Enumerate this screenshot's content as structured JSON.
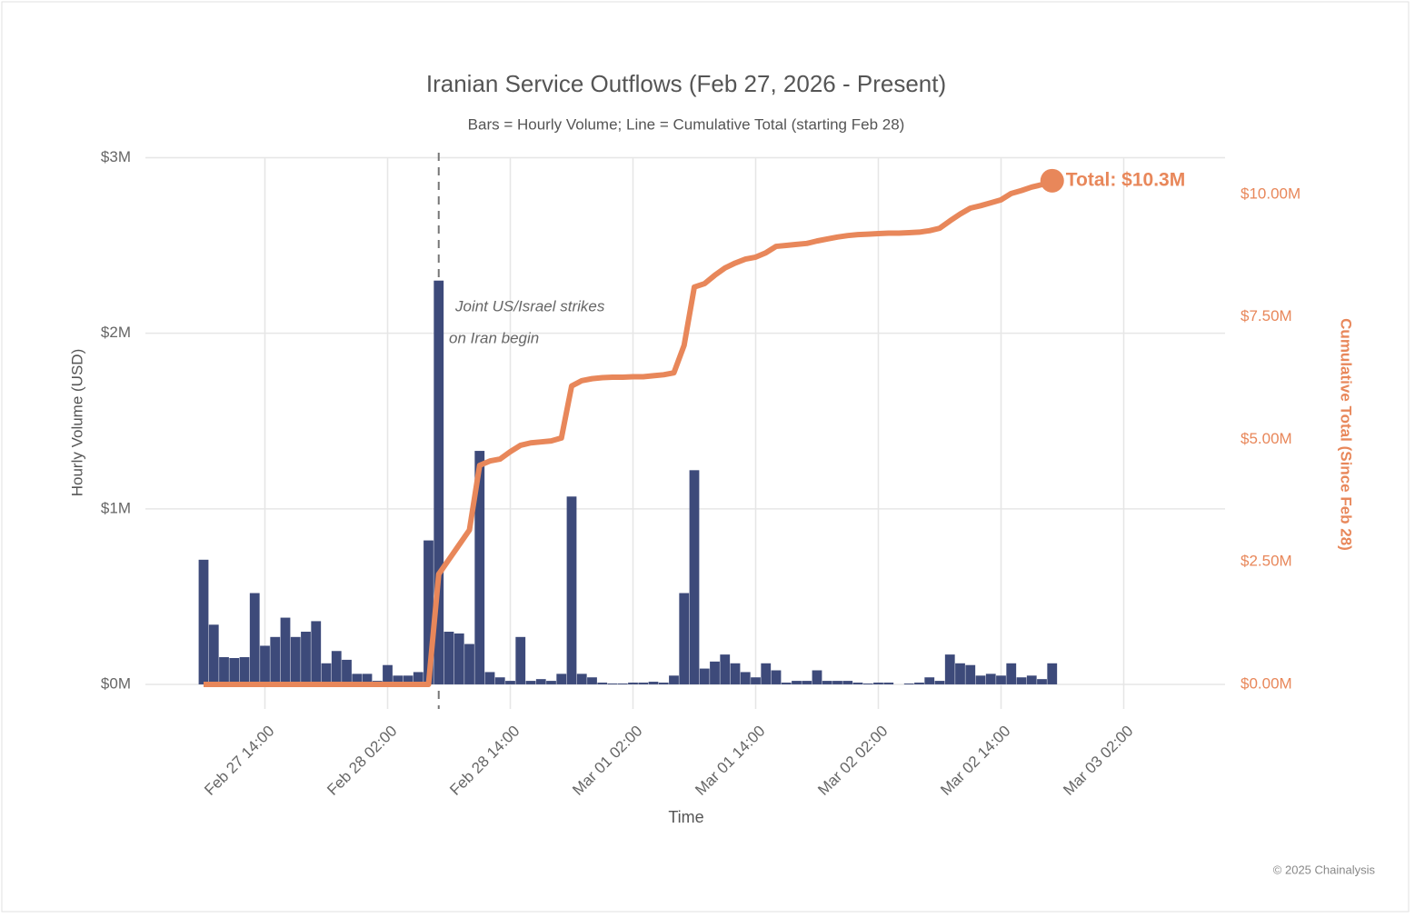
{
  "chart_data": {
    "type": "combo",
    "title": "Iranian Service Outflows (Feb 27, 2026 - Present)",
    "subtitle": "Bars = Hourly Volume; Line = Cumulative Total (starting Feb 28)",
    "x_label": "Time",
    "y_label": "Hourly Volume (USD)",
    "y2_label": "Cumulative Total (Since Feb 28)",
    "annotation": [
      "Joint US/Israel strikes",
      "on Iran begin"
    ],
    "end_label": "Total: $10.3M",
    "footer": "© 2025 Chainalysis",
    "grid": true,
    "categories": [
      null,
      null,
      null,
      null,
      null,
      null,
      "Feb 27 14:00",
      null,
      null,
      null,
      null,
      null,
      null,
      null,
      null,
      null,
      null,
      null,
      "Feb 28 02:00",
      null,
      null,
      null,
      null,
      null,
      null,
      null,
      null,
      null,
      null,
      null,
      "Feb 28 14:00",
      null,
      null,
      null,
      null,
      null,
      null,
      null,
      null,
      null,
      null,
      null,
      "Mar 01 02:00",
      null,
      null,
      null,
      null,
      null,
      null,
      null,
      null,
      null,
      null,
      null,
      "Mar 01 14:00",
      null,
      null,
      null,
      null,
      null,
      null,
      null,
      null,
      null,
      null,
      null,
      "Mar 02 02:00",
      null,
      null,
      null,
      null,
      null,
      null,
      null,
      null,
      null,
      null,
      null,
      "Mar 02 14:00",
      null,
      null,
      null,
      null,
      null,
      null,
      null,
      null,
      null,
      null,
      null,
      "Mar 03 02:00"
    ],
    "series": [
      {
        "type": "bar",
        "color": "#3d4a7a",
        "values": [
          0.71,
          0.34,
          0.155,
          0.15,
          0.155,
          0.52,
          0.22,
          0.27,
          0.38,
          0.27,
          0.3,
          0.36,
          0.12,
          0.19,
          0.14,
          0.06,
          0.06,
          0.02,
          0.11,
          0.05,
          0.05,
          0.07,
          0.82,
          2.3,
          0.3,
          0.29,
          0.23,
          1.33,
          0.07,
          0.04,
          0.02,
          0.27,
          0.02,
          0.03,
          0.02,
          0.06,
          1.07,
          0.06,
          0.04,
          0.01,
          0.005,
          0.005,
          0.01,
          0.01,
          0.015,
          0.01,
          0.05,
          0.52,
          1.22,
          0.09,
          0.13,
          0.17,
          0.12,
          0.07,
          0.04,
          0.12,
          0.08,
          0.01,
          0.02,
          0.02,
          0.08,
          0.02,
          0.02,
          0.02,
          0.01,
          0.005,
          0.01,
          0.01,
          0,
          0.005,
          0.01,
          0.04,
          0.02,
          0.17,
          0.12,
          0.11,
          0.05,
          0.06,
          0.05,
          0.12,
          0.04,
          0.05,
          0.03,
          0.12,
          null,
          null,
          null,
          null,
          null,
          null,
          null
        ]
      },
      {
        "type": "line",
        "axis": "y2",
        "color": "#e8875a",
        "values": [
          0,
          0,
          0,
          0,
          0,
          0,
          0,
          0,
          0,
          0,
          0,
          0,
          0,
          0,
          0,
          0,
          0,
          0,
          0,
          0,
          0,
          0,
          0,
          2.25,
          2.55,
          2.85,
          3.15,
          4.47,
          4.56,
          4.6,
          4.75,
          4.88,
          4.93,
          4.95,
          4.97,
          5.03,
          6.09,
          6.2,
          6.24,
          6.26,
          6.27,
          6.27,
          6.28,
          6.28,
          6.3,
          6.32,
          6.36,
          6.92,
          8.11,
          8.18,
          8.35,
          8.5,
          8.6,
          8.68,
          8.72,
          8.81,
          8.94,
          8.96,
          8.98,
          9.0,
          9.05,
          9.09,
          9.13,
          9.16,
          9.18,
          9.19,
          9.2,
          9.21,
          9.21,
          9.22,
          9.23,
          9.26,
          9.31,
          9.46,
          9.6,
          9.72,
          9.77,
          9.83,
          9.89,
          10.02,
          10.08,
          10.15,
          10.2,
          10.28,
          null,
          null,
          null,
          null,
          null,
          null,
          null
        ]
      }
    ],
    "ylim": [
      -0.14,
      3.07
    ],
    "yticks": [
      {
        "value": 0,
        "label": "$0M"
      },
      {
        "value": 1,
        "label": "$1M"
      },
      {
        "value": 2,
        "label": "$2M"
      },
      {
        "value": 3,
        "label": "$3M"
      }
    ],
    "y2lim": [
      -0.5,
      11.0
    ],
    "y2ticks": [
      {
        "value": 0,
        "label": "$0.00M"
      },
      {
        "value": 2.5,
        "label": "$2.50M"
      },
      {
        "value": 5,
        "label": "$5.00M"
      },
      {
        "value": 7.5,
        "label": "$7.50M"
      },
      {
        "value": 10,
        "label": "$10.00M"
      }
    ]
  }
}
